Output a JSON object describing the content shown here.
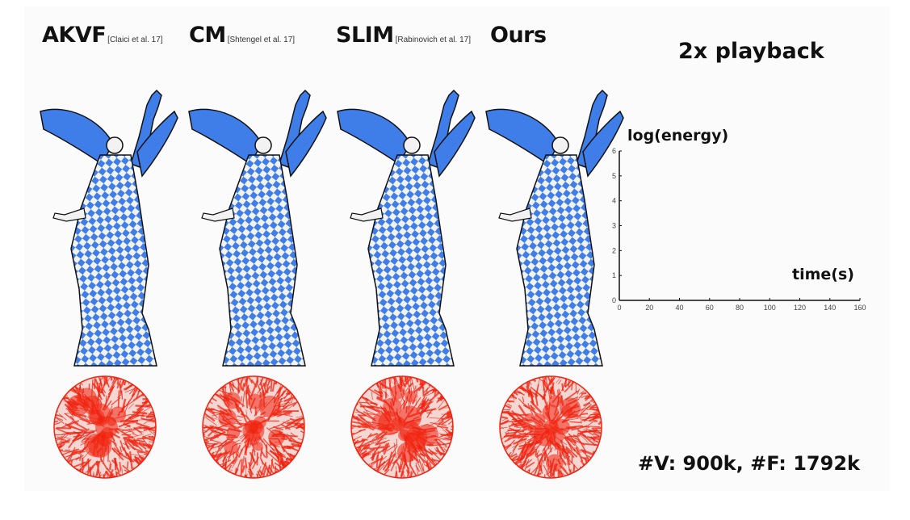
{
  "methods": [
    {
      "name": "AKVF",
      "ref": "[Claici et al. 17]"
    },
    {
      "name": "CM",
      "ref": "[Shtengel et al. 17]"
    },
    {
      "name": "SLIM",
      "ref": "[Rabinovich et al. 17]"
    },
    {
      "name": "Ours",
      "ref": ""
    }
  ],
  "playback": "2x playback",
  "stats": "#V: 900k, #F: 1792k",
  "colors": {
    "mesh_blue": "#3f7ee8",
    "mesh_white": "#f2f2f2",
    "disk_red": "#f0220f"
  },
  "chart_data": {
    "type": "line",
    "ylabel": "log(energy)",
    "xlabel": "time(s)",
    "xlim": [
      0,
      160
    ],
    "ylim": [
      0,
      6
    ],
    "xticks": [
      0,
      20,
      40,
      60,
      80,
      100,
      120,
      140,
      160
    ],
    "yticks": [
      0,
      1,
      2,
      3,
      4,
      5,
      6
    ],
    "series": [],
    "grid": false
  }
}
